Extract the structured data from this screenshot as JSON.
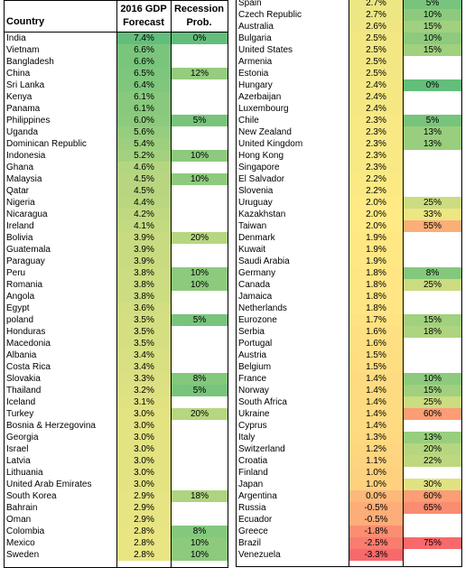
{
  "headers": {
    "country": "Country",
    "gdp_line1": "2016 GDP",
    "gdp_line2": "Forecast",
    "rec_line1": "Recession",
    "rec_line2": "Prob."
  },
  "colors": {
    "green": "#63BE7B",
    "yellow": "#FFEB84",
    "red": "#F8696B",
    "border": "#000000"
  },
  "chart_data": {
    "type": "table",
    "columns": [
      "Country",
      "2016 GDP Forecast",
      "Recession Prob."
    ],
    "rows": [
      [
        "India",
        "7.4%",
        "0%"
      ],
      [
        "Vietnam",
        "6.6%",
        ""
      ],
      [
        "Bangladesh",
        "6.6%",
        ""
      ],
      [
        "China",
        "6.5%",
        "12%"
      ],
      [
        "Sri Lanka",
        "6.4%",
        ""
      ],
      [
        "Kenya",
        "6.1%",
        ""
      ],
      [
        "Panama",
        "6.1%",
        ""
      ],
      [
        "Philippines",
        "6.0%",
        "5%"
      ],
      [
        "Uganda",
        "5.6%",
        ""
      ],
      [
        "Dominican Republic",
        "5.4%",
        ""
      ],
      [
        "Indonesia",
        "5.2%",
        "10%"
      ],
      [
        "Ghana",
        "4.6%",
        ""
      ],
      [
        "Malaysia",
        "4.5%",
        "10%"
      ],
      [
        "Qatar",
        "4.5%",
        ""
      ],
      [
        "Nigeria",
        "4.4%",
        ""
      ],
      [
        "Nicaragua",
        "4.2%",
        ""
      ],
      [
        "Ireland",
        "4.1%",
        ""
      ],
      [
        "Bolivia",
        "3.9%",
        "20%"
      ],
      [
        "Guatemala",
        "3.9%",
        ""
      ],
      [
        "Paraguay",
        "3.9%",
        ""
      ],
      [
        "Peru",
        "3.8%",
        "10%"
      ],
      [
        "Romania",
        "3.8%",
        "10%"
      ],
      [
        "Angola",
        "3.8%",
        ""
      ],
      [
        "Egypt",
        "3.6%",
        ""
      ],
      [
        "poland",
        "3.5%",
        "5%"
      ],
      [
        "Honduras",
        "3.5%",
        ""
      ],
      [
        "Macedonia",
        "3.5%",
        ""
      ],
      [
        "Albania",
        "3.4%",
        ""
      ],
      [
        "Costa Rica",
        "3.4%",
        ""
      ],
      [
        "Slovakia",
        "3.3%",
        "8%"
      ],
      [
        "Thailand",
        "3.2%",
        "5%"
      ],
      [
        "Iceland",
        "3.1%",
        ""
      ],
      [
        "Turkey",
        "3.0%",
        "20%"
      ],
      [
        "Bosnia & Herzegovina",
        "3.0%",
        ""
      ],
      [
        "Georgia",
        "3.0%",
        ""
      ],
      [
        "Israel",
        "3.0%",
        ""
      ],
      [
        "Latvia",
        "3.0%",
        ""
      ],
      [
        "Lithuania",
        "3.0%",
        ""
      ],
      [
        "United Arab Emirates",
        "3.0%",
        ""
      ],
      [
        "South Korea",
        "2.9%",
        "18%"
      ],
      [
        "Bahrain",
        "2.9%",
        ""
      ],
      [
        "Oman",
        "2.9%",
        ""
      ],
      [
        "Colombia",
        "2.8%",
        "8%"
      ],
      [
        "Mexico",
        "2.8%",
        "10%"
      ],
      [
        "Sweden",
        "2.8%",
        "10%"
      ],
      [
        "Spain",
        "2.7%",
        "5%"
      ],
      [
        "Czech Republic",
        "2.7%",
        "10%"
      ],
      [
        "Australia",
        "2.6%",
        "15%"
      ],
      [
        "Bulgaria",
        "2.5%",
        "10%"
      ],
      [
        "United States",
        "2.5%",
        "15%"
      ],
      [
        "Armenia",
        "2.5%",
        ""
      ],
      [
        "Estonia",
        "2.5%",
        ""
      ],
      [
        "Hungary",
        "2.4%",
        "0%"
      ],
      [
        "Azerbaijan",
        "2.4%",
        ""
      ],
      [
        "Luxembourg",
        "2.4%",
        ""
      ],
      [
        "Chile",
        "2.3%",
        "5%"
      ],
      [
        "New Zealand",
        "2.3%",
        "13%"
      ],
      [
        "United Kingdom",
        "2.3%",
        "13%"
      ],
      [
        "Hong Kong",
        "2.3%",
        ""
      ],
      [
        "Singapore",
        "2.3%",
        ""
      ],
      [
        "El Salvador",
        "2.2%",
        ""
      ],
      [
        "Slovenia",
        "2.2%",
        ""
      ],
      [
        "Uruguay",
        "2.0%",
        "25%"
      ],
      [
        "Kazakhstan",
        "2.0%",
        "33%"
      ],
      [
        "Taiwan",
        "2.0%",
        "55%"
      ],
      [
        "Denmark",
        "1.9%",
        ""
      ],
      [
        "Kuwait",
        "1.9%",
        ""
      ],
      [
        "Saudi Arabia",
        "1.9%",
        ""
      ],
      [
        "Germany",
        "1.8%",
        "8%"
      ],
      [
        "Canada",
        "1.8%",
        "25%"
      ],
      [
        "Jamaica",
        "1.8%",
        ""
      ],
      [
        "Netherlands",
        "1.8%",
        ""
      ],
      [
        "Eurozone",
        "1.7%",
        "15%"
      ],
      [
        "Serbia",
        "1.6%",
        "18%"
      ],
      [
        "Portugal",
        "1.6%",
        ""
      ],
      [
        "Austria",
        "1.5%",
        ""
      ],
      [
        "Belgium",
        "1.5%",
        ""
      ],
      [
        "France",
        "1.4%",
        "10%"
      ],
      [
        "Norway",
        "1.4%",
        "15%"
      ],
      [
        "South Africa",
        "1.4%",
        "25%"
      ],
      [
        "Ukraine",
        "1.4%",
        "60%"
      ],
      [
        "Cyprus",
        "1.4%",
        ""
      ],
      [
        "Italy",
        "1.3%",
        "13%"
      ],
      [
        "Switzerland",
        "1.2%",
        "20%"
      ],
      [
        "Croatia",
        "1.1%",
        "22%"
      ],
      [
        "Finland",
        "1.0%",
        ""
      ],
      [
        "Japan",
        "1.0%",
        "30%"
      ],
      [
        "Argentina",
        "0.0%",
        "60%"
      ],
      [
        "Russia",
        "-0.5%",
        "65%"
      ],
      [
        "Ecuador",
        "-0.5%",
        ""
      ],
      [
        "Greece",
        "-1.8%",
        ""
      ],
      [
        "Brazil",
        "-2.5%",
        "75%"
      ],
      [
        "Venezuela",
        "-3.3%",
        ""
      ]
    ]
  }
}
